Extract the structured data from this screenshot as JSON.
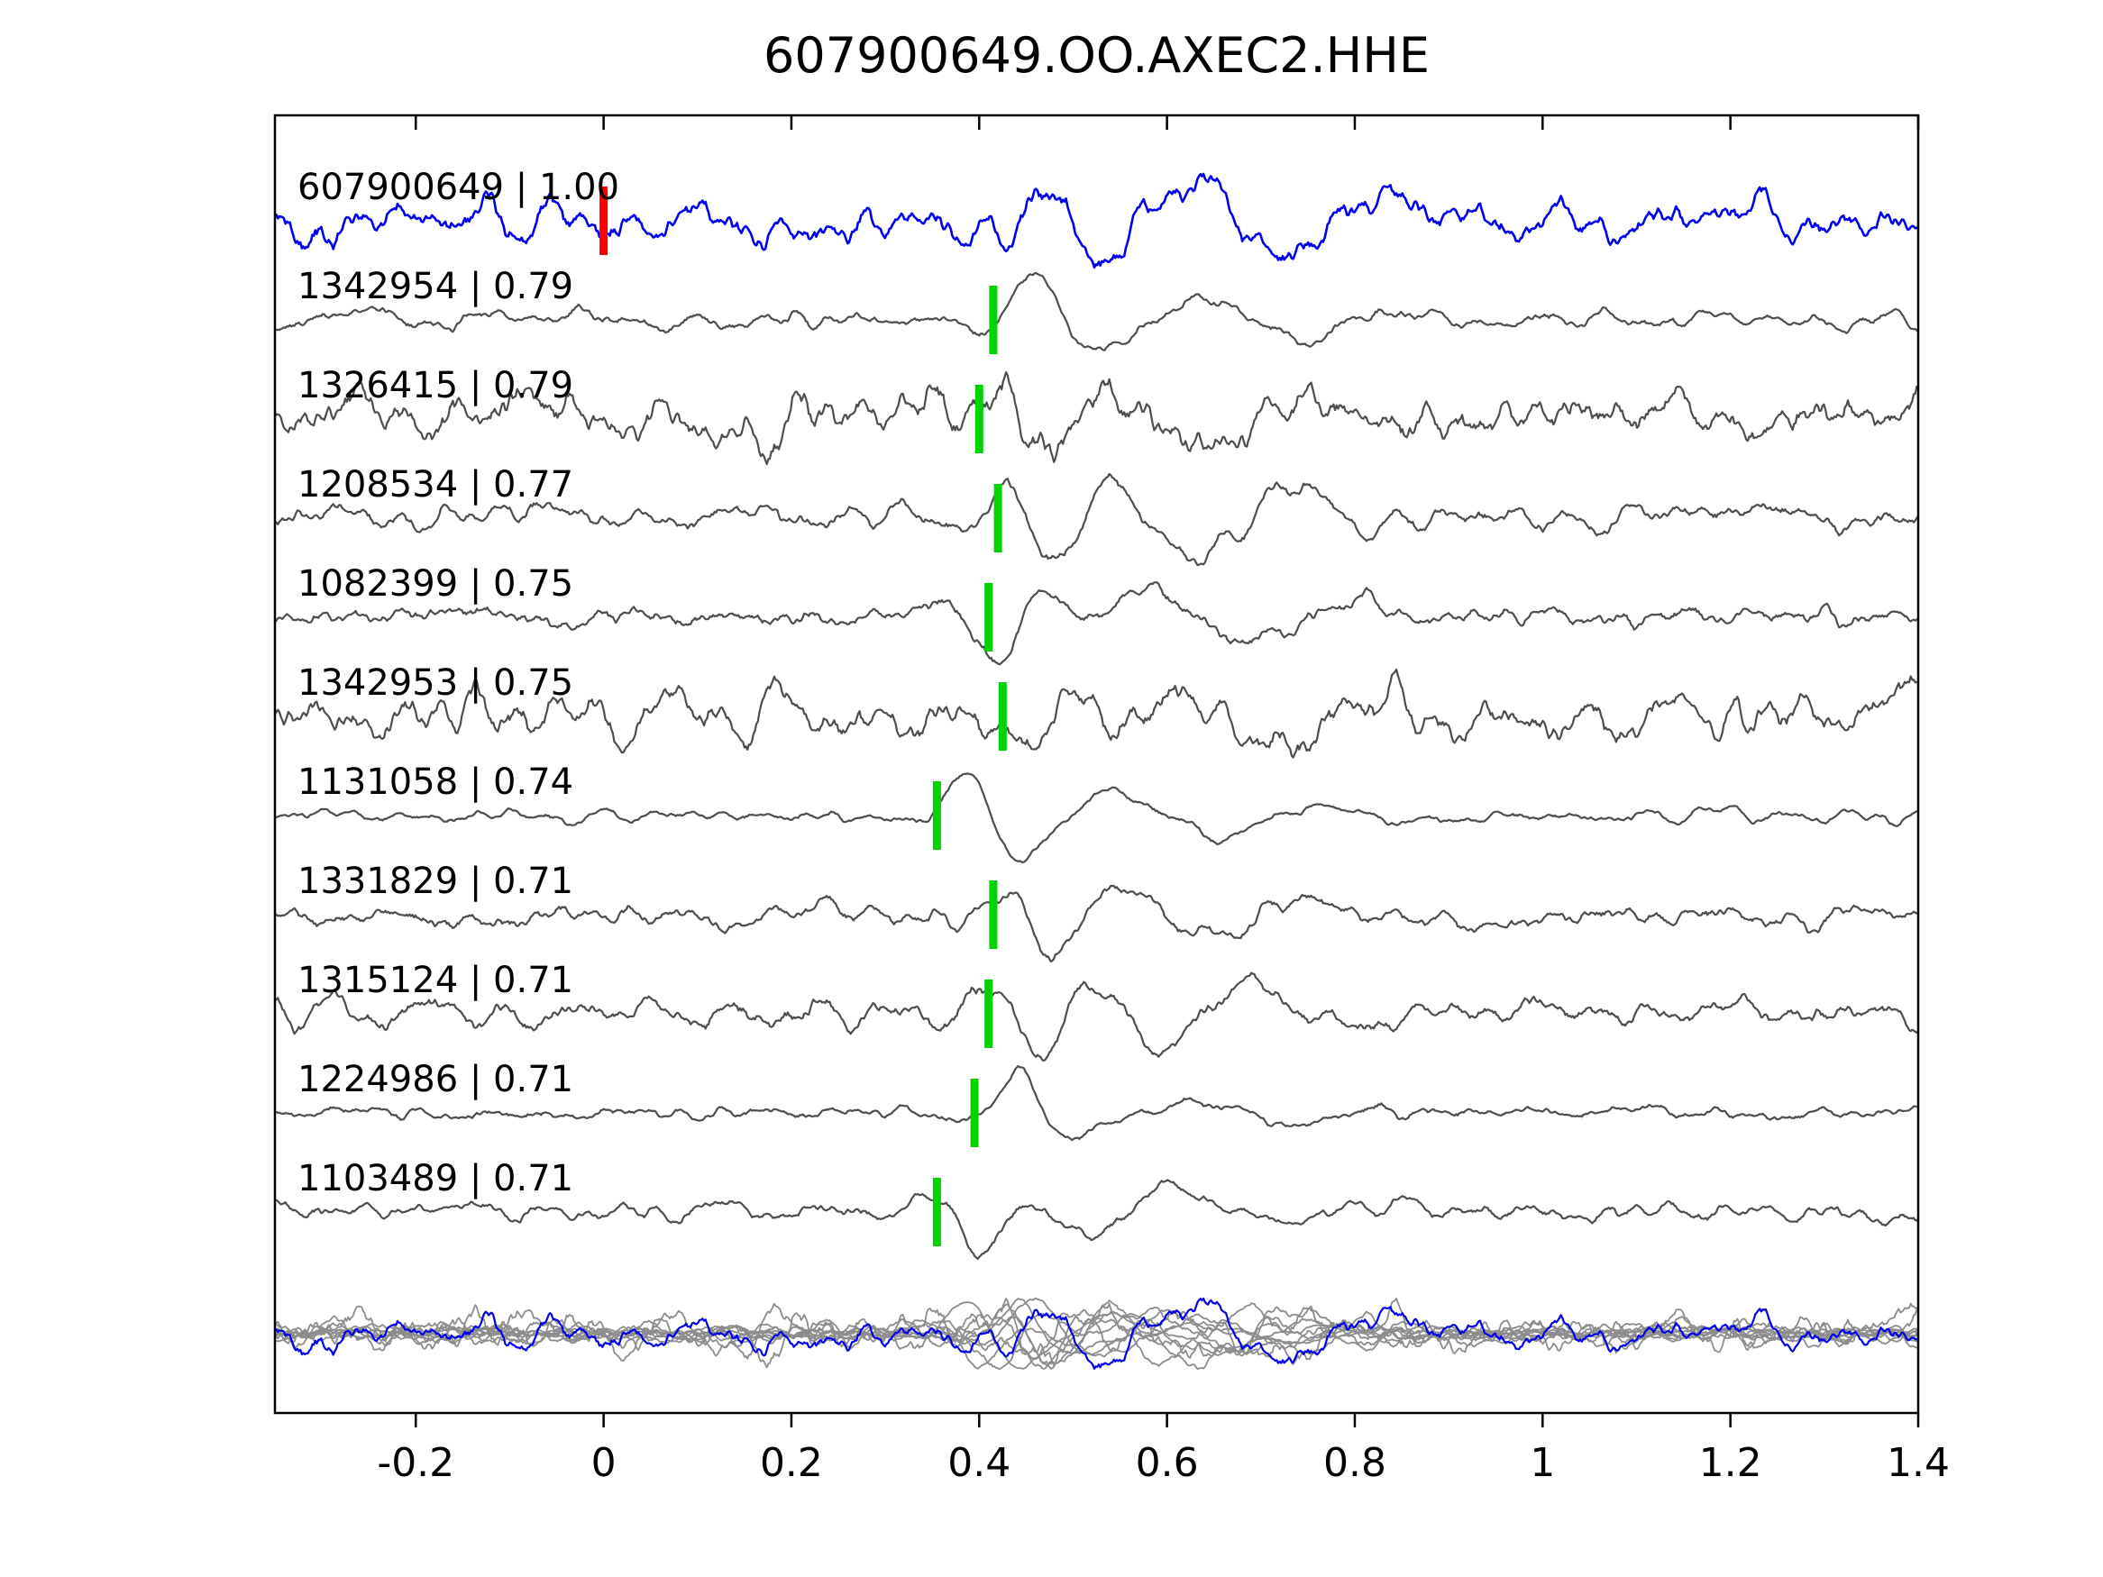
{
  "title": "607900649.OO.AXEC2.HHE",
  "chart_data": {
    "type": "line",
    "title": "607900649.OO.AXEC2.HHE",
    "xlabel": "",
    "ylabel": "",
    "xlim": [
      -0.35,
      1.4
    ],
    "x_ticks": [
      -0.2,
      0,
      0.2,
      0.4,
      0.6,
      0.8,
      1,
      1.2,
      1.4
    ],
    "x_tick_labels": [
      "-0.2",
      "0",
      "0.2",
      "0.4",
      "0.6",
      "0.8",
      "1",
      "1.2",
      "1.4"
    ],
    "grid": false,
    "legend": false,
    "colors": {
      "reference_trace": "#0000ee",
      "match_trace": "#4d4d4d",
      "overlay_trace": "#8c8c8c",
      "reference_pick": "#ff0000",
      "match_pick": "#00d400",
      "axis": "#000000",
      "text": "#000000"
    },
    "traces": [
      {
        "label": "607900649 | 1.00",
        "id": "607900649",
        "correlation": 1.0,
        "role": "reference",
        "pick_time": 0.0,
        "seed": 101,
        "noise_amp": 0.5,
        "burst_amp": 1.0,
        "burst_center": 0.5
      },
      {
        "label": "1342954 | 0.79",
        "id": "1342954",
        "correlation": 0.79,
        "role": "match",
        "pick_time": 0.415,
        "seed": 202,
        "noise_amp": 0.3,
        "burst_amp": 1.0,
        "burst_center": 0.46
      },
      {
        "label": "1326415 | 0.79",
        "id": "1326415",
        "correlation": 0.79,
        "role": "match",
        "pick_time": 0.4,
        "seed": 303,
        "noise_amp": 0.72,
        "burst_amp": 0.9,
        "burst_center": 0.46
      },
      {
        "label": "1208534 | 0.77",
        "id": "1208534",
        "correlation": 0.77,
        "role": "match",
        "pick_time": 0.42,
        "seed": 404,
        "noise_amp": 0.3,
        "burst_amp": 1.0,
        "burst_center": 0.47
      },
      {
        "label": "1082399 | 0.75",
        "id": "1082399",
        "correlation": 0.75,
        "role": "match",
        "pick_time": 0.41,
        "seed": 505,
        "noise_amp": 0.32,
        "burst_amp": 0.95,
        "burst_center": 0.44
      },
      {
        "label": "1342953 | 0.75",
        "id": "1342953",
        "correlation": 0.75,
        "role": "match",
        "pick_time": 0.425,
        "seed": 606,
        "noise_amp": 0.68,
        "burst_amp": 1.0,
        "burst_center": 0.47
      },
      {
        "label": "1131058 | 0.74",
        "id": "1131058",
        "correlation": 0.74,
        "role": "match",
        "pick_time": 0.355,
        "seed": 707,
        "noise_amp": 0.18,
        "burst_amp": 0.8,
        "burst_center": 0.4
      },
      {
        "label": "1331829 | 0.71",
        "id": "1331829",
        "correlation": 0.71,
        "role": "match",
        "pick_time": 0.415,
        "seed": 808,
        "noise_amp": 0.3,
        "burst_amp": 0.9,
        "burst_center": 0.46
      },
      {
        "label": "1315124 | 0.71",
        "id": "1315124",
        "correlation": 0.71,
        "role": "match",
        "pick_time": 0.41,
        "seed": 909,
        "noise_amp": 0.36,
        "burst_amp": 1.0,
        "burst_center": 0.46
      },
      {
        "label": "1224986 | 0.71",
        "id": "1224986",
        "correlation": 0.71,
        "role": "match",
        "pick_time": 0.395,
        "seed": 1010,
        "noise_amp": 0.3,
        "burst_amp": 0.95,
        "burst_center": 0.44
      },
      {
        "label": "1103489 | 0.71",
        "id": "1103489",
        "correlation": 0.71,
        "role": "match",
        "pick_time": 0.355,
        "seed": 1111,
        "noise_amp": 0.2,
        "burst_amp": 0.75,
        "burst_center": 0.4
      }
    ],
    "overlay": {
      "description": "All matched traces overlaid in gray with reference trace in blue",
      "includes_reference": true
    }
  }
}
